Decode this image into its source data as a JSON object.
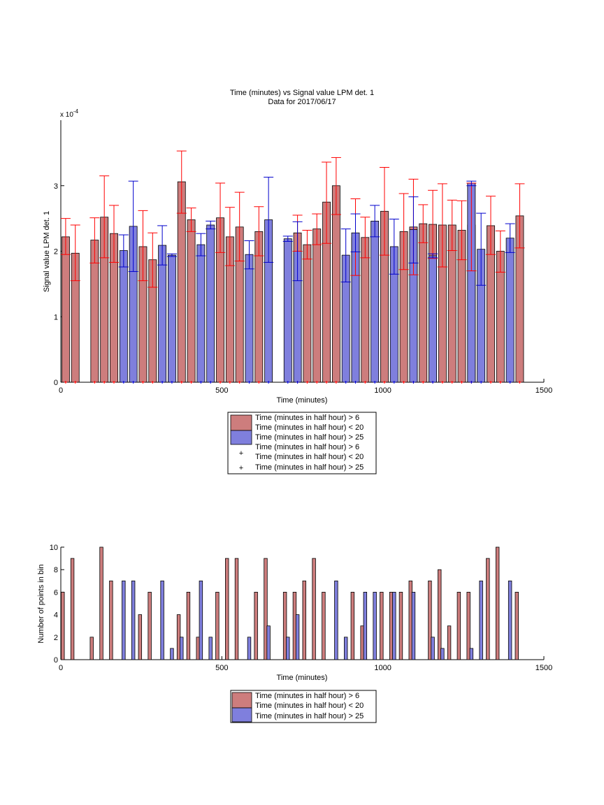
{
  "colors": {
    "red_fill": "#cd7d7d",
    "blue_fill": "#7f7fdd",
    "red_line": "#ff0000",
    "blue_line": "#0000cc",
    "axis": "#000000"
  },
  "chart_data": [
    {
      "type": "bar",
      "title": "Time (minutes) vs Signal value LPM det. 1",
      "subtitle": "Data for 2017/06/17",
      "xlabel": "Time (minutes)",
      "ylabel": "Signal value LPM det. 1",
      "y_exponent_label": "x 10",
      "y_exponent_power": "-4",
      "xlim": [
        0,
        1500
      ],
      "ylim": [
        0,
        4.0
      ],
      "xticks": [
        "0",
        "500",
        "1000",
        "1500"
      ],
      "yticks": [
        "0",
        "1",
        "2",
        "3"
      ],
      "legend": {
        "placement": "bottom",
        "entries": [
          {
            "label_1": "Time (minutes in half hour) > 6",
            "label_2": "Time (minutes in half hour) < 20",
            "label_3": "",
            "marker": "patch",
            "color": "#cd7d7d"
          },
          {
            "label_1": "Time (minutes in half hour) > 25",
            "label_2": "",
            "label_3": "",
            "marker": "patch",
            "color": "#7f7fdd"
          },
          {
            "label_1": "Time (minutes in half hour) > 6",
            "label_2": "Time (minutes in half hour) < 20",
            "label_3": "",
            "marker": "+",
            "color": "#ff0000"
          },
          {
            "label_1": "Time (minutes in half hour) > 25",
            "label_2": "",
            "label_3": "",
            "marker": "+",
            "color": "#0000cc"
          }
        ]
      },
      "series": [
        {
          "color_key": "red",
          "bars": [
            {
              "x": 15,
              "value": 2.22,
              "lo": 1.95,
              "hi": 2.5
            },
            {
              "x": 45,
              "value": 1.97,
              "lo": 1.55,
              "hi": 2.4
            },
            {
              "x": 105,
              "value": 2.17,
              "lo": 1.82,
              "hi": 2.51
            },
            {
              "x": 135,
              "value": 2.52,
              "lo": 1.9,
              "hi": 3.15
            },
            {
              "x": 165,
              "value": 2.27,
              "lo": 1.83,
              "hi": 2.7
            },
            {
              "x": 255,
              "value": 2.07,
              "lo": 1.55,
              "hi": 2.62
            },
            {
              "x": 285,
              "value": 1.87,
              "lo": 1.45,
              "hi": 2.28
            },
            {
              "x": 375,
              "value": 3.06,
              "lo": 2.58,
              "hi": 3.53
            },
            {
              "x": 405,
              "value": 2.48,
              "lo": 2.3,
              "hi": 2.66
            },
            {
              "x": 495,
              "value": 2.51,
              "lo": 1.98,
              "hi": 3.04
            },
            {
              "x": 525,
              "value": 2.22,
              "lo": 1.78,
              "hi": 2.67
            },
            {
              "x": 555,
              "value": 2.37,
              "lo": 1.85,
              "hi": 2.9
            },
            {
              "x": 615,
              "value": 2.3,
              "lo": 1.93,
              "hi": 2.68
            },
            {
              "x": 735,
              "value": 2.28,
              "lo": 2.0,
              "hi": 2.55
            },
            {
              "x": 765,
              "value": 2.1,
              "lo": 1.88,
              "hi": 2.32
            },
            {
              "x": 795,
              "value": 2.34,
              "lo": 2.1,
              "hi": 2.57
            },
            {
              "x": 825,
              "value": 2.75,
              "lo": 2.12,
              "hi": 3.36
            },
            {
              "x": 855,
              "value": 3.0,
              "lo": 2.56,
              "hi": 3.43
            },
            {
              "x": 915,
              "value": 2.21,
              "lo": 1.63,
              "hi": 2.8
            },
            {
              "x": 945,
              "value": 2.21,
              "lo": 1.9,
              "hi": 2.52
            },
            {
              "x": 1005,
              "value": 2.61,
              "lo": 1.94,
              "hi": 3.28
            },
            {
              "x": 1065,
              "value": 2.3,
              "lo": 1.72,
              "hi": 2.88
            },
            {
              "x": 1095,
              "value": 2.37,
              "lo": 1.64,
              "hi": 3.1
            },
            {
              "x": 1125,
              "value": 2.42,
              "lo": 2.13,
              "hi": 2.71
            },
            {
              "x": 1155,
              "value": 2.41,
              "lo": 1.89,
              "hi": 2.93
            },
            {
              "x": 1185,
              "value": 2.4,
              "lo": 1.76,
              "hi": 3.03
            },
            {
              "x": 1215,
              "value": 2.4,
              "lo": 2.01,
              "hi": 2.78
            },
            {
              "x": 1245,
              "value": 2.32,
              "lo": 1.87,
              "hi": 2.77
            },
            {
              "x": 1275,
              "value": 2.4,
              "lo": 1.7,
              "hi": 3.04
            },
            {
              "x": 1335,
              "value": 2.39,
              "lo": 1.95,
              "hi": 2.84
            },
            {
              "x": 1365,
              "value": 2.0,
              "lo": 1.68,
              "hi": 2.31
            },
            {
              "x": 1425,
              "value": 2.54,
              "lo": 2.05,
              "hi": 3.03
            }
          ]
        },
        {
          "color_key": "blue",
          "bars": [
            {
              "x": 195,
              "value": 2.01,
              "lo": 1.76,
              "hi": 2.25
            },
            {
              "x": 225,
              "value": 2.38,
              "lo": 1.69,
              "hi": 3.07
            },
            {
              "x": 315,
              "value": 2.09,
              "lo": 1.79,
              "hi": 2.39
            },
            {
              "x": 345,
              "value": 1.94,
              "lo": 1.92,
              "hi": 1.96
            },
            {
              "x": 435,
              "value": 2.1,
              "lo": 1.93,
              "hi": 2.27
            },
            {
              "x": 465,
              "value": 2.4,
              "lo": 2.34,
              "hi": 2.46
            },
            {
              "x": 585,
              "value": 1.95,
              "lo": 1.73,
              "hi": 2.16
            },
            {
              "x": 645,
              "value": 2.48,
              "lo": 1.83,
              "hi": 3.13
            },
            {
              "x": 705,
              "value": 2.19,
              "lo": 2.15,
              "hi": 2.23
            },
            {
              "x": 735,
              "value": 2.0,
              "lo": 1.55,
              "hi": 2.45
            },
            {
              "x": 885,
              "value": 1.94,
              "lo": 1.53,
              "hi": 2.34
            },
            {
              "x": 915,
              "value": 2.28,
              "lo": 1.99,
              "hi": 2.57
            },
            {
              "x": 975,
              "value": 2.46,
              "lo": 2.22,
              "hi": 2.7
            },
            {
              "x": 1035,
              "value": 2.07,
              "lo": 1.65,
              "hi": 2.49
            },
            {
              "x": 1095,
              "value": 2.33,
              "lo": 1.82,
              "hi": 2.83
            },
            {
              "x": 1155,
              "value": 1.93,
              "lo": 1.9,
              "hi": 1.96
            },
            {
              "x": 1275,
              "value": 3.04,
              "lo": 3.0,
              "hi": 3.07
            },
            {
              "x": 1305,
              "value": 2.03,
              "lo": 1.48,
              "hi": 2.58
            },
            {
              "x": 1395,
              "value": 2.2,
              "lo": 1.98,
              "hi": 2.42
            }
          ]
        }
      ]
    },
    {
      "type": "bar",
      "title": "",
      "xlabel": "Time (minutes)",
      "ylabel": "Number of points in bin",
      "xlim": [
        0,
        1500
      ],
      "ylim": [
        0,
        10
      ],
      "xticks": [
        "0",
        "500",
        "1000",
        "1500"
      ],
      "yticks": [
        "0",
        "2",
        "4",
        "6",
        "8",
        "10"
      ],
      "legend": {
        "placement": "bottom",
        "entries": [
          {
            "label_1": "Time (minutes in half hour) > 6",
            "label_2": "Time (minutes in half hour) < 20",
            "label_3": "",
            "marker": "patch",
            "color": "#cd7d7d"
          },
          {
            "label_1": "Time (minutes in half hour) > 25",
            "label_2": "",
            "label_3": "",
            "marker": "patch",
            "color": "#7f7fdd"
          }
        ]
      },
      "series": [
        {
          "color_key": "red",
          "bars": [
            {
              "x": 6,
              "value": 6
            },
            {
              "x": 36,
              "value": 9
            },
            {
              "x": 96,
              "value": 2
            },
            {
              "x": 126,
              "value": 10
            },
            {
              "x": 156,
              "value": 7
            },
            {
              "x": 246,
              "value": 4
            },
            {
              "x": 276,
              "value": 6
            },
            {
              "x": 366,
              "value": 4
            },
            {
              "x": 396,
              "value": 6
            },
            {
              "x": 426,
              "value": 2
            },
            {
              "x": 486,
              "value": 6
            },
            {
              "x": 516,
              "value": 9
            },
            {
              "x": 546,
              "value": 9
            },
            {
              "x": 606,
              "value": 6
            },
            {
              "x": 636,
              "value": 9
            },
            {
              "x": 696,
              "value": 6
            },
            {
              "x": 726,
              "value": 6
            },
            {
              "x": 756,
              "value": 7
            },
            {
              "x": 786,
              "value": 9
            },
            {
              "x": 816,
              "value": 6
            },
            {
              "x": 906,
              "value": 6
            },
            {
              "x": 936,
              "value": 3
            },
            {
              "x": 996,
              "value": 6
            },
            {
              "x": 1026,
              "value": 6
            },
            {
              "x": 1056,
              "value": 6
            },
            {
              "x": 1086,
              "value": 7
            },
            {
              "x": 1146,
              "value": 7
            },
            {
              "x": 1176,
              "value": 8
            },
            {
              "x": 1206,
              "value": 3
            },
            {
              "x": 1236,
              "value": 6
            },
            {
              "x": 1266,
              "value": 6
            },
            {
              "x": 1326,
              "value": 9
            },
            {
              "x": 1356,
              "value": 10
            },
            {
              "x": 1416,
              "value": 6
            }
          ]
        },
        {
          "color_key": "blue",
          "bars": [
            {
              "x": 195,
              "value": 7
            },
            {
              "x": 225,
              "value": 7
            },
            {
              "x": 315,
              "value": 7
            },
            {
              "x": 345,
              "value": 1
            },
            {
              "x": 375,
              "value": 2
            },
            {
              "x": 435,
              "value": 7
            },
            {
              "x": 465,
              "value": 2
            },
            {
              "x": 585,
              "value": 2
            },
            {
              "x": 645,
              "value": 3
            },
            {
              "x": 705,
              "value": 2
            },
            {
              "x": 735,
              "value": 4
            },
            {
              "x": 855,
              "value": 7
            },
            {
              "x": 885,
              "value": 2
            },
            {
              "x": 945,
              "value": 6
            },
            {
              "x": 975,
              "value": 6
            },
            {
              "x": 1035,
              "value": 6
            },
            {
              "x": 1095,
              "value": 6
            },
            {
              "x": 1155,
              "value": 2
            },
            {
              "x": 1185,
              "value": 1
            },
            {
              "x": 1275,
              "value": 1
            },
            {
              "x": 1305,
              "value": 7
            },
            {
              "x": 1395,
              "value": 7
            }
          ]
        }
      ]
    }
  ]
}
